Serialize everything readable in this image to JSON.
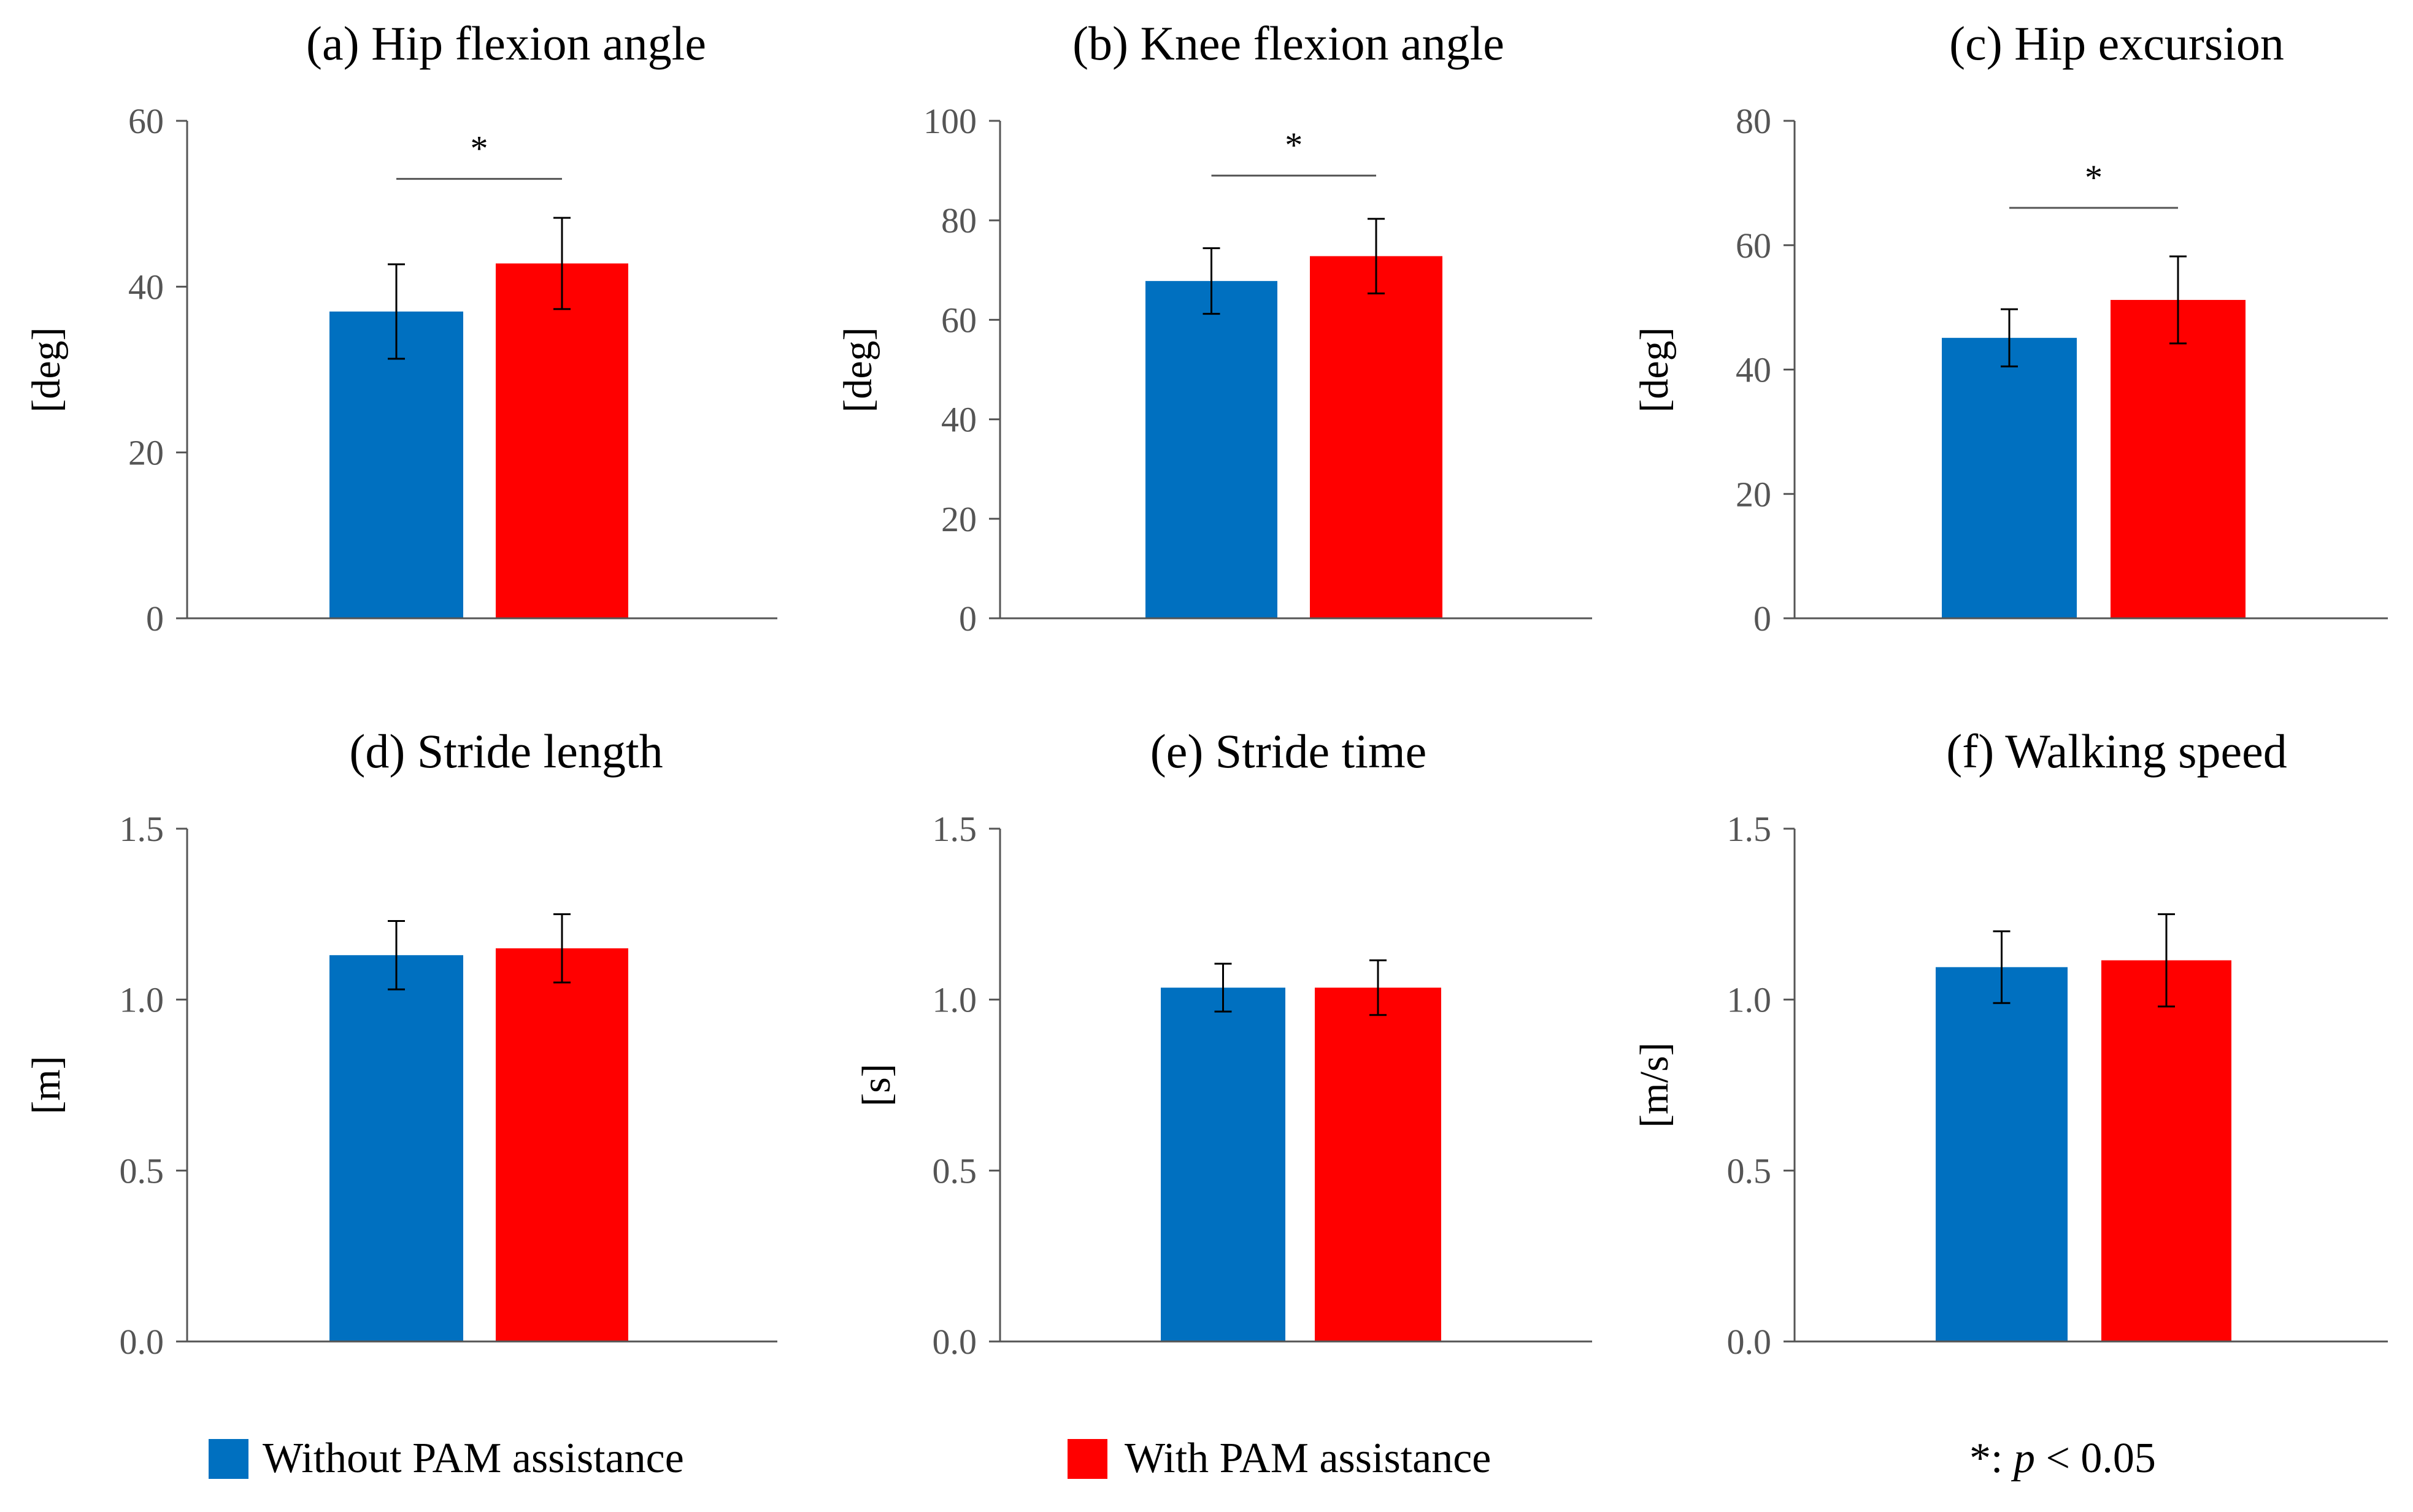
{
  "colors": {
    "without": "#0070C0",
    "with": "#FF0000",
    "axis": "#555555"
  },
  "legend": {
    "items": [
      {
        "label": "Without PAM assistance",
        "color": "#0070C0"
      },
      {
        "label": "With PAM assistance",
        "color": "#FF0000"
      }
    ],
    "note_prefix": "*: ",
    "note_p": "p",
    "note_suffix": " < 0.05"
  },
  "chart_data": [
    {
      "type": "bar",
      "title": "(a) Hip flexion angle",
      "ylabel": "[deg]",
      "ylim": [
        0,
        60
      ],
      "yticks": [
        "0",
        "20",
        "40",
        "60"
      ],
      "grid": false,
      "series": [
        {
          "name": "Without PAM assistance",
          "value": 37,
          "error": 5.7
        },
        {
          "name": "With PAM assistance",
          "value": 42.8,
          "error": 5.5
        }
      ],
      "significance": {
        "label": "*",
        "y": 53
      }
    },
    {
      "type": "bar",
      "title": "(b) Knee flexion angle",
      "ylabel": "[deg]",
      "ylim": [
        0,
        100
      ],
      "yticks": [
        "0",
        "20",
        "40",
        "60",
        "80",
        "100"
      ],
      "grid": false,
      "series": [
        {
          "name": "Without PAM assistance",
          "value": 67.8,
          "error": 6.6
        },
        {
          "name": "With PAM assistance",
          "value": 72.8,
          "error": 7.5
        }
      ],
      "significance": {
        "label": "*",
        "y": 89
      }
    },
    {
      "type": "bar",
      "title": "(c) Hip excursion",
      "ylabel": "[deg]",
      "ylim": [
        0,
        80
      ],
      "yticks": [
        "0",
        "20",
        "40",
        "60",
        "80"
      ],
      "grid": false,
      "series": [
        {
          "name": "Without PAM assistance",
          "value": 45.1,
          "error": 4.6
        },
        {
          "name": "With PAM assistance",
          "value": 51.2,
          "error": 7.0
        }
      ],
      "significance": {
        "label": "*",
        "y": 66
      }
    },
    {
      "type": "bar",
      "title": "(d) Stride length",
      "ylabel": "[m]",
      "ylim": [
        0,
        1.5
      ],
      "yticks": [
        "0.0",
        "0.5",
        "1.0",
        "1.5"
      ],
      "grid": false,
      "series": [
        {
          "name": "Without PAM assistance",
          "value": 1.13,
          "error": 0.1
        },
        {
          "name": "With PAM assistance",
          "value": 1.15,
          "error": 0.1
        }
      ]
    },
    {
      "type": "bar",
      "title": "(e) Stride time",
      "ylabel": "[s]",
      "ylim": [
        0,
        1.5
      ],
      "yticks": [
        "0.0",
        "0.5",
        "1.0",
        "1.5"
      ],
      "grid": false,
      "series": [
        {
          "name": "Without PAM assistance",
          "value": 1.035,
          "error": 0.07
        },
        {
          "name": "With PAM assistance",
          "value": 1.035,
          "error": 0.08
        }
      ]
    },
    {
      "type": "bar",
      "title": "(f) Walking speed",
      "ylabel": "[m/s]",
      "ylim": [
        0,
        1.5
      ],
      "yticks": [
        "0.0",
        "0.5",
        "1.0",
        "1.5"
      ],
      "grid": false,
      "series": [
        {
          "name": "Without PAM assistance",
          "value": 1.095,
          "error": 0.105
        },
        {
          "name": "With PAM assistance",
          "value": 1.115,
          "error": 0.135
        }
      ]
    }
  ]
}
